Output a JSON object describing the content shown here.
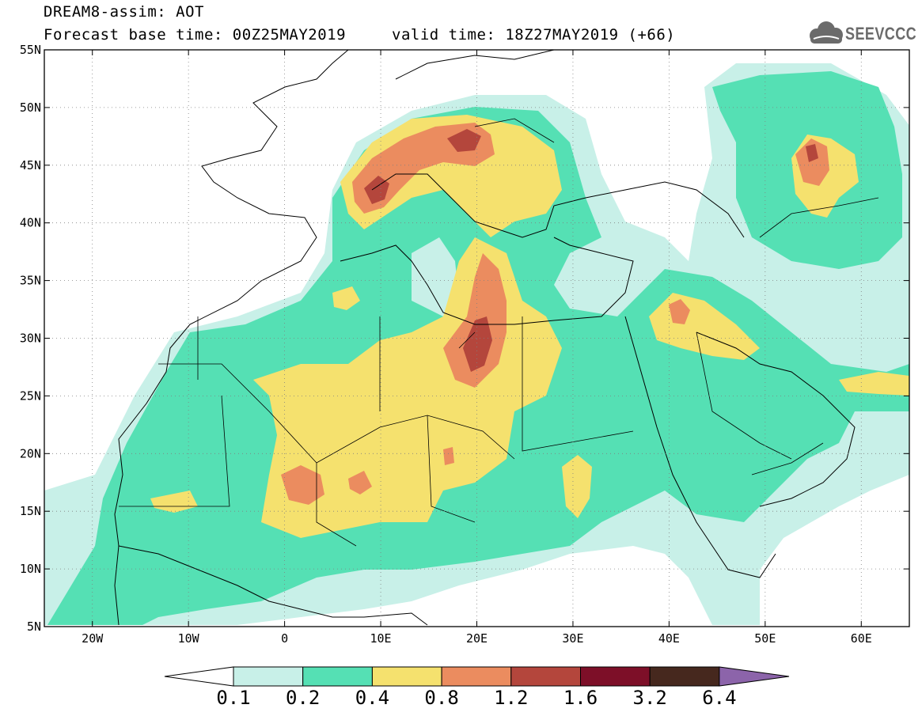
{
  "header": {
    "line1": "DREAM8-assim: AOT",
    "base_time": "Forecast base time: 00Z25MAY2019",
    "valid_time": "valid time: 18Z27MAY2019 (+66)",
    "logo_text": "SEEVCCC"
  },
  "map": {
    "lon_labels": [
      "20W",
      "10W",
      "0",
      "10E",
      "20E",
      "30E",
      "40E",
      "50E",
      "60E"
    ],
    "lat_labels": [
      "55N",
      "50N",
      "45N",
      "40N",
      "35N",
      "30N",
      "25N",
      "20N",
      "15N",
      "10N",
      "5N"
    ],
    "lon_range": [
      -25,
      65
    ],
    "lat_range": [
      5,
      55
    ]
  },
  "colorbar": {
    "labels": [
      "0.1",
      "0.2",
      "0.4",
      "0.8",
      "1.2",
      "1.6",
      "3.2",
      "6.4"
    ],
    "colors": [
      "#c8f0e8",
      "#55e0b4",
      "#f5e16e",
      "#eb8c5f",
      "#b4463c",
      "#7d0f28",
      "#46281e",
      "#8c64aa"
    ]
  }
}
